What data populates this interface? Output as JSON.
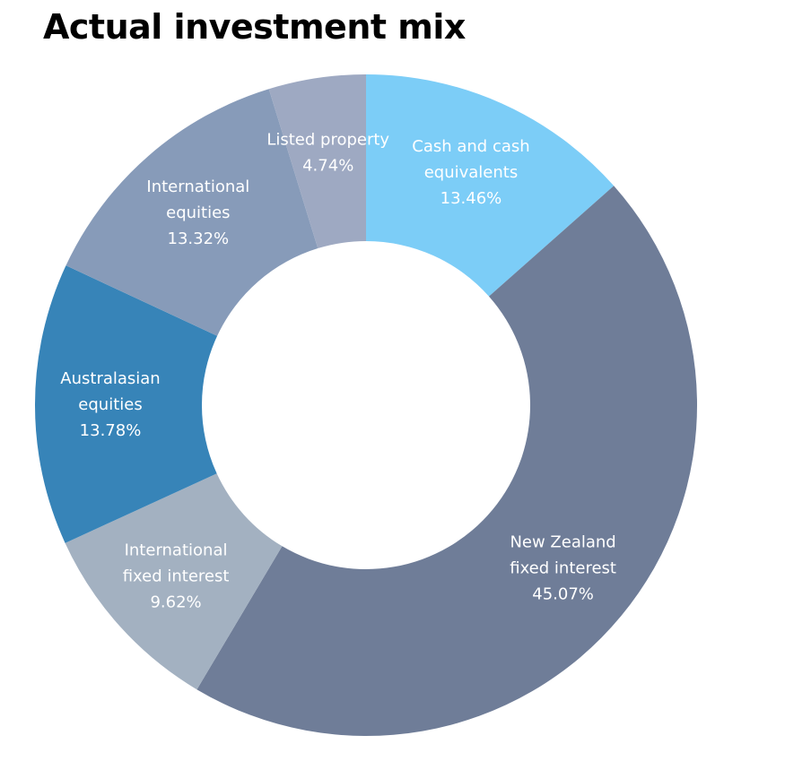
{
  "chart_data": {
    "type": "pie",
    "title": "Actual investment mix",
    "slices": [
      {
        "name": "Cash and cash equivalents",
        "label_lines": [
          "Cash and cash",
          "equivalents"
        ],
        "value": 13.46,
        "value_label": "13.46%",
        "color": "#7ccdf7"
      },
      {
        "name": "New Zealand fixed interest",
        "label_lines": [
          "New Zealand",
          "fixed interest"
        ],
        "value": 45.07,
        "value_label": "45.07%",
        "color": "#6f7d98"
      },
      {
        "name": "International fixed interest",
        "label_lines": [
          "International",
          "fixed interest"
        ],
        "value": 9.62,
        "value_label": "9.62%",
        "color": "#a3b1c1"
      },
      {
        "name": "Australasian equities",
        "label_lines": [
          "Australasian",
          "equities"
        ],
        "value": 13.78,
        "value_label": "13.78%",
        "color": "#3784b8"
      },
      {
        "name": "International equities",
        "label_lines": [
          "International",
          "equities"
        ],
        "value": 13.32,
        "value_label": "13.32%",
        "color": "#879bb9"
      },
      {
        "name": "Listed property",
        "label_lines": [
          "Listed property"
        ],
        "value": 4.74,
        "value_label": "4.74%",
        "color": "#9ea9c2"
      }
    ]
  }
}
